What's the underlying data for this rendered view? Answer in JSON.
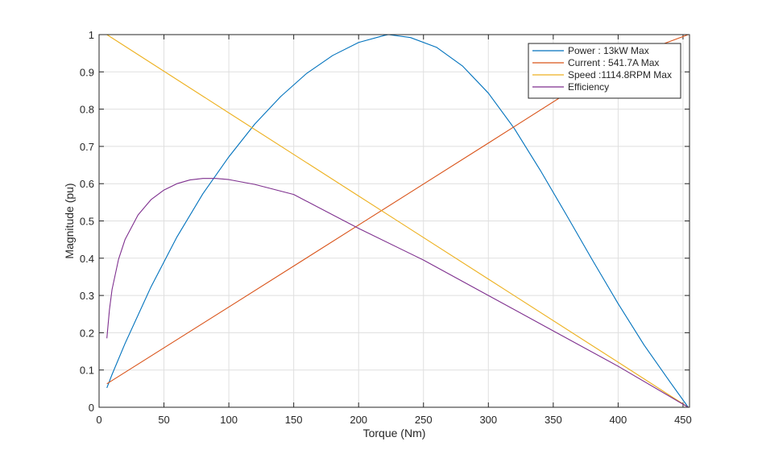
{
  "chart_data": {
    "type": "line",
    "xlabel": "Torque (Nm)",
    "ylabel": "Magnitude (pu)",
    "xlim": [
      0,
      455
    ],
    "ylim": [
      0,
      1
    ],
    "x_ticks": [
      0,
      50,
      100,
      150,
      200,
      250,
      300,
      350,
      400,
      450
    ],
    "y_ticks": [
      0,
      0.1,
      0.2,
      0.3,
      0.4,
      0.5,
      0.6,
      0.7,
      0.8,
      0.9,
      1
    ],
    "x_tick_labels": [
      "0",
      "50",
      "100",
      "150",
      "200",
      "250",
      "300",
      "350",
      "400",
      "450"
    ],
    "y_tick_labels": [
      "0",
      "0.1",
      "0.2",
      "0.3",
      "0.4",
      "0.5",
      "0.6",
      "0.7",
      "0.8",
      "0.9",
      "1"
    ],
    "grid": true,
    "legend_position": "top-right",
    "series": [
      {
        "name": "Power : 13kW Max",
        "color": "#0072BD",
        "x": [
          6,
          10,
          20,
          40,
          60,
          80,
          100,
          120,
          140,
          160,
          180,
          200,
          220,
          223,
          240,
          260,
          280,
          300,
          320,
          340,
          360,
          380,
          400,
          420,
          440,
          454
        ],
        "y": [
          0.052,
          0.088,
          0.171,
          0.323,
          0.457,
          0.573,
          0.672,
          0.76,
          0.834,
          0.896,
          0.944,
          0.979,
          0.998,
          1.0,
          0.992,
          0.966,
          0.916,
          0.843,
          0.748,
          0.636,
          0.517,
          0.396,
          0.278,
          0.167,
          0.068,
          0.0
        ]
      },
      {
        "name": "Current : 541.7A Max",
        "color": "#D95319",
        "x": [
          6,
          100,
          200,
          300,
          400,
          454
        ],
        "y": [
          0.063,
          0.269,
          0.489,
          0.709,
          0.93,
          1.0
        ]
      },
      {
        "name": "Speed :1114.8RPM Max",
        "color": "#EDB120",
        "x": [
          6,
          100,
          200,
          300,
          400,
          454
        ],
        "y": [
          1.0,
          0.79,
          0.567,
          0.344,
          0.121,
          0.0
        ]
      },
      {
        "name": "Efficiency",
        "color": "#7E2F8E",
        "x": [
          6,
          8,
          10,
          15,
          20,
          30,
          40,
          50,
          60,
          70,
          80,
          90,
          100,
          120,
          150,
          200,
          250,
          300,
          350,
          400,
          454
        ],
        "y": [
          0.185,
          0.262,
          0.316,
          0.397,
          0.45,
          0.516,
          0.557,
          0.583,
          0.6,
          0.61,
          0.614,
          0.614,
          0.611,
          0.598,
          0.571,
          0.48,
          0.395,
          0.3,
          0.205,
          0.11,
          0.0
        ]
      }
    ]
  }
}
